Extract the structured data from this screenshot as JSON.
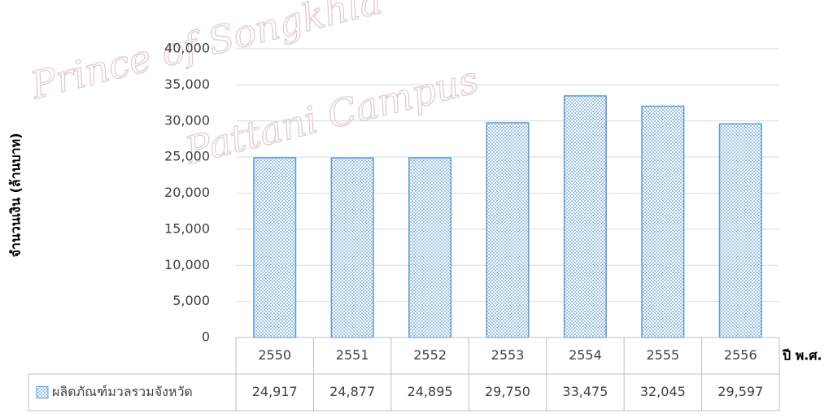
{
  "chart_data": {
    "type": "bar",
    "watermark": [
      "Prince of Songkhla",
      "Pattani Campus"
    ],
    "y_label": "จำนวนเงิน (ล้านบาท)",
    "x_label": "ปี พ.ศ.",
    "categories": [
      "2550",
      "2551",
      "2552",
      "2553",
      "2554",
      "2555",
      "2556"
    ],
    "series": [
      {
        "name": "ผลิตภัณฑ์มวลรวมจังหวัด",
        "color": "#5b9bd5",
        "values": [
          24917,
          24877,
          24895,
          29750,
          33475,
          32045,
          29597
        ],
        "value_labels": [
          "24,917",
          "24,877",
          "24,895",
          "29,750",
          "33,475",
          "32,045",
          "29,597"
        ]
      }
    ],
    "ylim": [
      0,
      40000
    ],
    "yticks": [
      0,
      {
        "value": 5000,
        "label": "5,000"
      },
      {
        "value": 10000,
        "label": "10,000"
      },
      {
        "value": 15000,
        "label": "15,000"
      },
      {
        "value": 20000,
        "label": "20,000"
      },
      {
        "value": 25000,
        "label": "25,000"
      },
      {
        "value": 30000,
        "label": "30,000"
      },
      {
        "value": 35000,
        "label": "35,000"
      },
      {
        "value": 40000,
        "label": "40,000"
      }
    ],
    "grid": true,
    "data_table": true
  }
}
